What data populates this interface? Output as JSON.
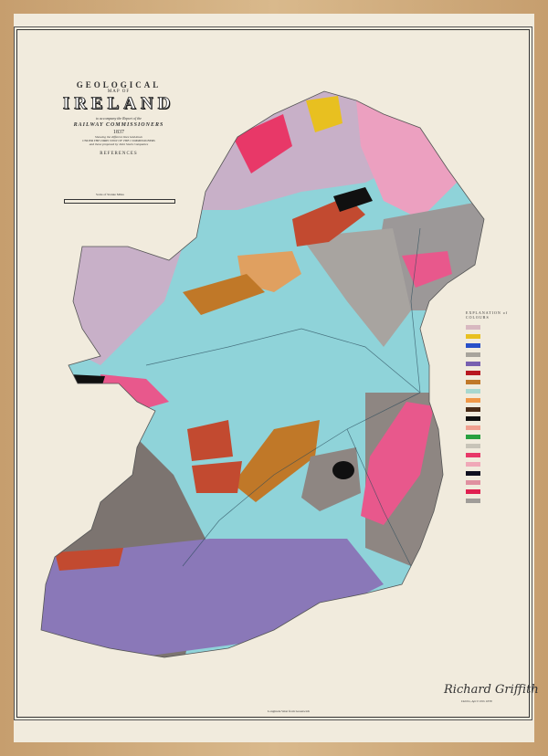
{
  "title": {
    "line1": "GEOLOGICAL",
    "line2": "MAP OF",
    "line3": "IRELAND",
    "line4": "to accompany the Report of the",
    "line5": "RAILWAY COMMISSIONERS",
    "year": "1837",
    "line6": "Showing the different lines laid down",
    "line7": "UNDER THE DIRECTION OF THE COMMISSIONERS",
    "line8": "and those proposed by Joint Stock Companies",
    "references": "REFERENCES",
    "scale": "Scale of Statute Miles"
  },
  "legend": {
    "title": "EXPLANATION of COLOURS",
    "swatches": [
      "#d8b8c0",
      "#e8c020",
      "#2850c8",
      "#a8a49c",
      "#7860b0",
      "#b81820",
      "#c07828",
      "#a8d8d0",
      "#f09848",
      "#4a2c18",
      "#101010",
      "#f0a090",
      "#28a040",
      "#c8c4b8",
      "#e83868",
      "#f0a8b8",
      "#101020",
      "#e090a0",
      "#e02050",
      "#a09c98"
    ]
  },
  "map": {
    "colors": {
      "limestone": "#8fd3d9",
      "slate": "#8e8682",
      "old_red": "#8a78b8",
      "granite": "#e8588c",
      "clay_slate": "#9c9898",
      "trap": "#c24a30",
      "sandstone": "#e0a060",
      "mica": "#c8b0c8",
      "pink": "#eca0c0"
    }
  },
  "footer": {
    "longitude": "Longitude West from Greenwich",
    "signature": "Richard Griffith",
    "date": "Dublin, April 10th 1838"
  }
}
